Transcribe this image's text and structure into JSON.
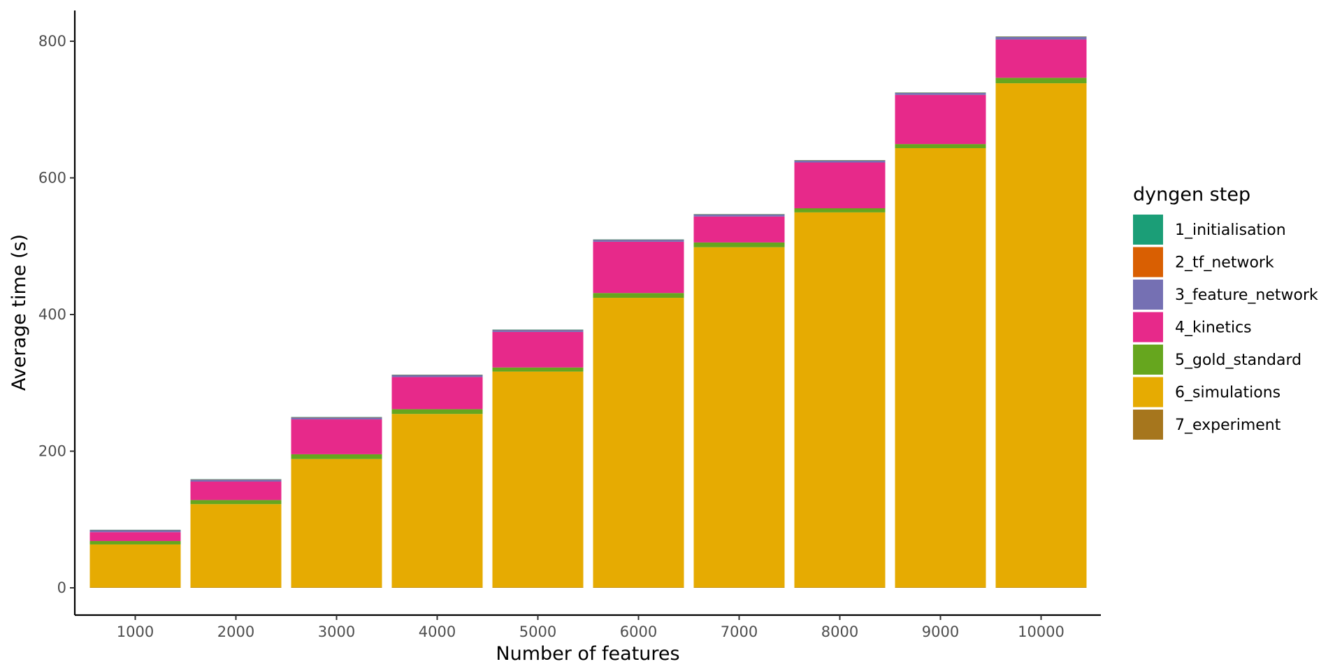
{
  "chart_data": {
    "type": "bar",
    "stacked": true,
    "xlabel": "Number of features",
    "ylabel": "Average time (s)",
    "ylim": [
      -45,
      845
    ],
    "yticks": [
      0,
      200,
      400,
      600,
      800
    ],
    "grid": false,
    "legend": {
      "title": "dyngen step",
      "placement": "right"
    },
    "categories": [
      "1000",
      "2000",
      "3000",
      "4000",
      "5000",
      "6000",
      "7000",
      "8000",
      "9000",
      "10000"
    ],
    "series": [
      {
        "name": "1_initialisation",
        "color": "#1B9E77",
        "values": [
          0.3,
          0.3,
          0.3,
          0.3,
          0.3,
          0.3,
          0.3,
          0.3,
          0.3,
          0.3
        ]
      },
      {
        "name": "2_tf_network",
        "color": "#D95F02",
        "values": [
          0.2,
          0.2,
          0.2,
          0.2,
          0.2,
          0.2,
          0.2,
          0.2,
          0.2,
          0.2
        ]
      },
      {
        "name": "3_feature_network",
        "color": "#7570B3",
        "values": [
          3,
          3,
          3,
          3,
          3,
          3,
          3,
          3,
          3,
          4
        ]
      },
      {
        "name": "4_kinetics",
        "color": "#E7298A",
        "values": [
          13,
          27,
          51,
          47,
          52,
          75,
          38,
          67,
          72,
          56
        ]
      },
      {
        "name": "5_gold_standard",
        "color": "#66A61E",
        "values": [
          5,
          6,
          7,
          7,
          6,
          7,
          7,
          6,
          6,
          8
        ]
      },
      {
        "name": "6_simulations",
        "color": "#E6AB02",
        "values": [
          63,
          122,
          188,
          254,
          316,
          424,
          498,
          549,
          643,
          738
        ]
      },
      {
        "name": "7_experiment",
        "color": "#A6761D",
        "values": [
          0.5,
          0.5,
          0.5,
          0.5,
          0.5,
          0.5,
          0.5,
          0.5,
          0.5,
          0.5
        ]
      }
    ]
  }
}
